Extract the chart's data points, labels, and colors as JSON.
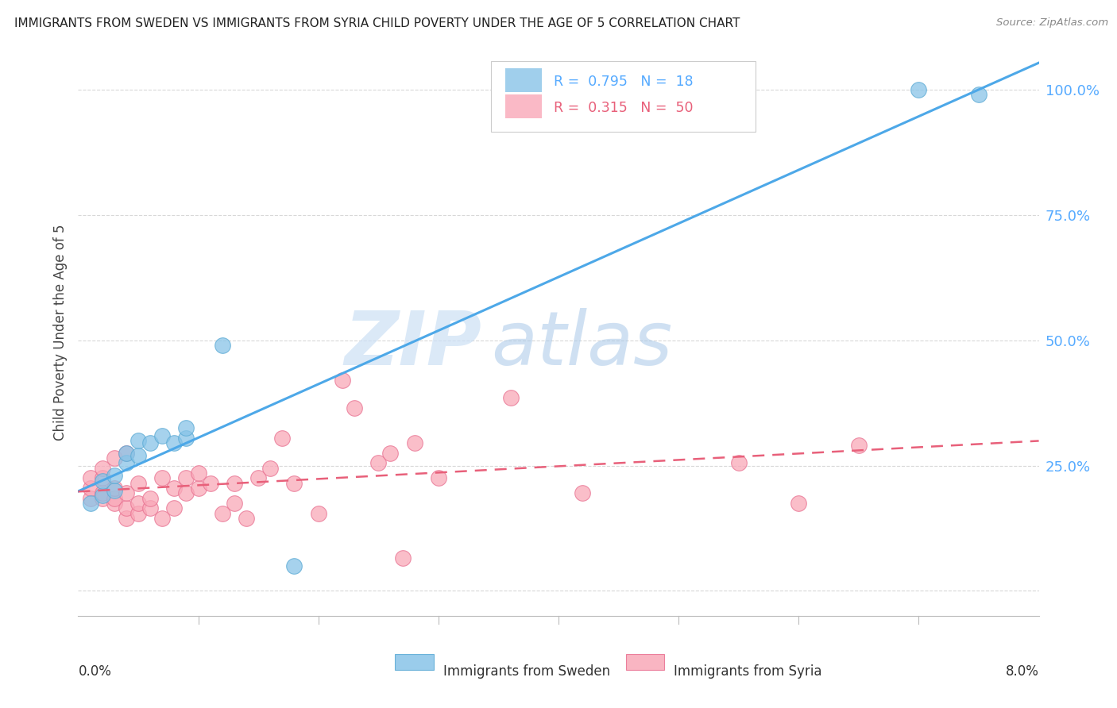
{
  "title": "IMMIGRANTS FROM SWEDEN VS IMMIGRANTS FROM SYRIA CHILD POVERTY UNDER THE AGE OF 5 CORRELATION CHART",
  "source": "Source: ZipAtlas.com",
  "ylabel": "Child Poverty Under the Age of 5",
  "xlim": [
    0.0,
    0.08
  ],
  "ylim": [
    -0.05,
    1.08
  ],
  "ytick_values": [
    0.0,
    0.25,
    0.5,
    0.75,
    1.0
  ],
  "ytick_labels": [
    "",
    "25.0%",
    "50.0%",
    "75.0%",
    "100.0%"
  ],
  "xtick_values": [
    0.0,
    0.01,
    0.02,
    0.03,
    0.04,
    0.05,
    0.06,
    0.07,
    0.08
  ],
  "sweden_color": "#88c4e8",
  "sweden_edge": "#5aaad4",
  "sweden_line_color": "#4da8e8",
  "syria_color": "#f9a8b8",
  "syria_edge": "#e87090",
  "syria_line_color": "#e8607a",
  "sweden_R": 0.795,
  "sweden_N": 18,
  "syria_R": 0.315,
  "syria_N": 50,
  "legend_label_sweden": "Immigrants from Sweden",
  "legend_label_syria": "Immigrants from Syria",
  "watermark_zip": "ZIP",
  "watermark_atlas": "atlas",
  "background_color": "#ffffff",
  "grid_color": "#d8d8d8",
  "sweden_x": [
    0.001,
    0.002,
    0.002,
    0.003,
    0.003,
    0.004,
    0.004,
    0.005,
    0.005,
    0.006,
    0.007,
    0.008,
    0.009,
    0.009,
    0.012,
    0.018,
    0.07,
    0.075
  ],
  "sweden_y": [
    0.175,
    0.19,
    0.22,
    0.2,
    0.23,
    0.255,
    0.275,
    0.27,
    0.3,
    0.295,
    0.31,
    0.295,
    0.305,
    0.325,
    0.49,
    0.05,
    1.0,
    0.99
  ],
  "syria_x": [
    0.001,
    0.001,
    0.001,
    0.002,
    0.002,
    0.002,
    0.002,
    0.003,
    0.003,
    0.003,
    0.003,
    0.004,
    0.004,
    0.004,
    0.004,
    0.005,
    0.005,
    0.005,
    0.006,
    0.006,
    0.007,
    0.007,
    0.008,
    0.008,
    0.009,
    0.009,
    0.01,
    0.01,
    0.011,
    0.012,
    0.013,
    0.013,
    0.014,
    0.015,
    0.016,
    0.017,
    0.018,
    0.02,
    0.022,
    0.023,
    0.025,
    0.026,
    0.027,
    0.028,
    0.03,
    0.036,
    0.042,
    0.055,
    0.06,
    0.065
  ],
  "syria_y": [
    0.185,
    0.205,
    0.225,
    0.185,
    0.195,
    0.225,
    0.245,
    0.175,
    0.185,
    0.205,
    0.265,
    0.145,
    0.165,
    0.195,
    0.275,
    0.155,
    0.175,
    0.215,
    0.165,
    0.185,
    0.145,
    0.225,
    0.165,
    0.205,
    0.195,
    0.225,
    0.205,
    0.235,
    0.215,
    0.155,
    0.175,
    0.215,
    0.145,
    0.225,
    0.245,
    0.305,
    0.215,
    0.155,
    0.42,
    0.365,
    0.255,
    0.275,
    0.065,
    0.295,
    0.225,
    0.385,
    0.195,
    0.255,
    0.175,
    0.29
  ]
}
